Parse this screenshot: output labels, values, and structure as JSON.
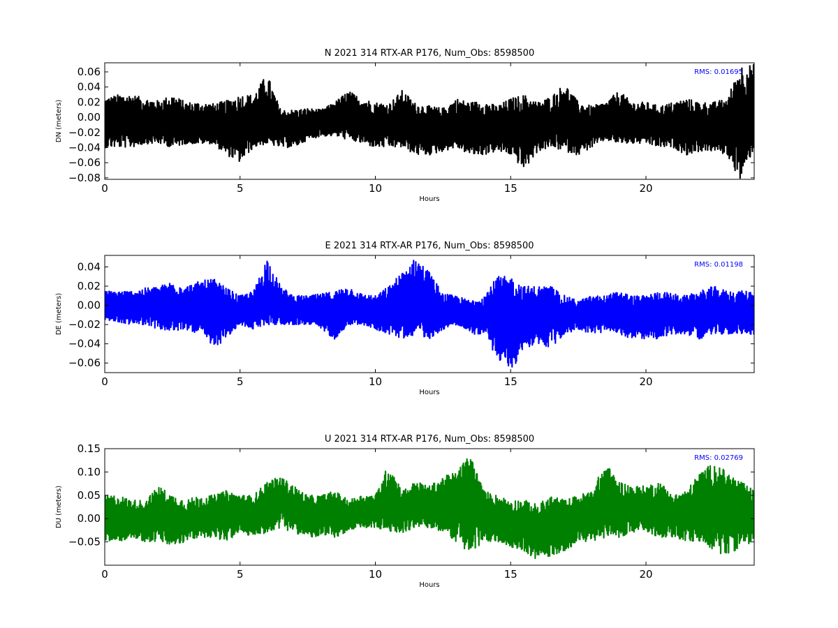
{
  "chart_data": [
    {
      "type": "line",
      "title": "N 2021 314 RTX-AR  P176, Num_Obs: 8598500",
      "xlabel": "Hours",
      "ylabel": "DN (meters)",
      "xlim": [
        0,
        24
      ],
      "ylim": [
        -0.082,
        0.072
      ],
      "xticks": [
        0,
        5,
        10,
        15,
        20
      ],
      "yticks": [
        -0.08,
        -0.06,
        -0.04,
        -0.02,
        0.0,
        0.02,
        0.04,
        0.06
      ],
      "ytick_labels": [
        "−0.08",
        "−0.06",
        "−0.04",
        "−0.02",
        "0.00",
        "0.02",
        "0.04",
        "0.06"
      ],
      "annotation": "RMS:  0.01695",
      "annotation_color": "#0000ff",
      "series": [
        {
          "color": "#000000",
          "hour_step": 0.5,
          "envelope_upper": [
            0.025,
            0.03,
            0.03,
            0.025,
            0.022,
            0.03,
            0.02,
            0.02,
            0.018,
            0.022,
            0.03,
            0.03,
            0.058,
            0.01,
            0.01,
            0.012,
            0.01,
            0.02,
            0.035,
            0.025,
            0.02,
            0.018,
            0.036,
            0.018,
            0.015,
            0.012,
            0.025,
            0.02,
            0.022,
            0.015,
            0.025,
            0.03,
            0.02,
            0.028,
            0.045,
            0.02,
            0.015,
            0.02,
            0.035,
            0.02,
            0.02,
            0.015,
            0.02,
            0.025,
            0.02,
            0.02,
            0.025,
            0.07,
            0.07
          ],
          "envelope_lower": [
            -0.04,
            -0.04,
            -0.04,
            -0.035,
            -0.035,
            -0.04,
            -0.035,
            -0.035,
            -0.035,
            -0.05,
            -0.06,
            -0.04,
            -0.035,
            -0.04,
            -0.04,
            -0.03,
            -0.025,
            -0.025,
            -0.03,
            -0.035,
            -0.04,
            -0.04,
            -0.04,
            -0.05,
            -0.05,
            -0.045,
            -0.04,
            -0.05,
            -0.05,
            -0.045,
            -0.05,
            -0.07,
            -0.045,
            -0.04,
            -0.045,
            -0.05,
            -0.04,
            -0.03,
            -0.035,
            -0.035,
            -0.035,
            -0.04,
            -0.04,
            -0.05,
            -0.045,
            -0.045,
            -0.05,
            -0.085,
            -0.04
          ],
          "center": [
            -0.005,
            -0.005,
            -0.005,
            -0.008,
            -0.008,
            -0.01,
            -0.012,
            -0.012,
            -0.012,
            -0.015,
            -0.015,
            -0.01,
            -0.01,
            -0.015,
            -0.015,
            -0.01,
            -0.005,
            0.0,
            0.0,
            -0.005,
            -0.01,
            -0.01,
            -0.01,
            -0.012,
            -0.015,
            -0.015,
            -0.01,
            -0.015,
            -0.015,
            -0.015,
            -0.012,
            -0.015,
            -0.015,
            -0.01,
            -0.005,
            -0.012,
            -0.015,
            -0.01,
            -0.005,
            -0.01,
            -0.01,
            -0.012,
            -0.012,
            -0.015,
            -0.012,
            -0.012,
            -0.012,
            -0.01,
            -0.01
          ]
        }
      ]
    },
    {
      "type": "line",
      "title": "E 2021 314 RTX-AR  P176, Num_Obs: 8598500",
      "xlabel": "Hours",
      "ylabel": "DE (meters)",
      "xlim": [
        0,
        24
      ],
      "ylim": [
        -0.07,
        0.052
      ],
      "xticks": [
        0,
        5,
        10,
        15,
        20
      ],
      "yticks": [
        -0.06,
        -0.04,
        -0.02,
        0.0,
        0.02,
        0.04
      ],
      "ytick_labels": [
        "−0.06",
        "−0.04",
        "−0.02",
        "0.00",
        "0.02",
        "0.04"
      ],
      "annotation": "RMS:  0.01198",
      "annotation_color": "#0000ff",
      "series": [
        {
          "color": "#0000ff",
          "hour_step": 0.5,
          "envelope_upper": [
            0.015,
            0.015,
            0.015,
            0.018,
            0.02,
            0.025,
            0.02,
            0.025,
            0.028,
            0.018,
            0.01,
            0.015,
            0.05,
            0.02,
            0.01,
            0.01,
            0.012,
            0.015,
            0.02,
            0.012,
            0.01,
            0.02,
            0.035,
            0.05,
            0.035,
            0.012,
            0.01,
            0.005,
            0.01,
            0.03,
            0.03,
            0.02,
            0.02,
            0.02,
            0.01,
            0.005,
            0.01,
            0.01,
            0.015,
            0.01,
            0.01,
            0.015,
            0.012,
            0.01,
            0.015,
            0.02,
            0.015,
            0.015,
            0.015
          ],
          "envelope_lower": [
            -0.015,
            -0.018,
            -0.02,
            -0.02,
            -0.025,
            -0.028,
            -0.025,
            -0.03,
            -0.045,
            -0.035,
            -0.02,
            -0.025,
            -0.02,
            -0.02,
            -0.02,
            -0.02,
            -0.025,
            -0.035,
            -0.02,
            -0.02,
            -0.025,
            -0.03,
            -0.035,
            -0.03,
            -0.035,
            -0.025,
            -0.02,
            -0.03,
            -0.03,
            -0.055,
            -0.07,
            -0.045,
            -0.04,
            -0.045,
            -0.03,
            -0.025,
            -0.03,
            -0.028,
            -0.03,
            -0.035,
            -0.035,
            -0.035,
            -0.03,
            -0.03,
            -0.035,
            -0.03,
            -0.03,
            -0.03,
            -0.03
          ],
          "center": [
            0.0,
            -0.002,
            -0.002,
            -0.002,
            -0.003,
            -0.002,
            -0.002,
            -0.002,
            -0.005,
            -0.005,
            -0.008,
            -0.005,
            0.005,
            -0.005,
            -0.005,
            -0.005,
            -0.005,
            -0.008,
            -0.003,
            -0.005,
            -0.008,
            -0.005,
            0.0,
            0.005,
            0.0,
            -0.008,
            -0.005,
            -0.01,
            -0.01,
            -0.012,
            -0.015,
            -0.01,
            -0.008,
            -0.01,
            -0.01,
            -0.01,
            -0.01,
            -0.008,
            -0.008,
            -0.01,
            -0.01,
            -0.01,
            -0.008,
            -0.008,
            -0.01,
            -0.008,
            -0.008,
            -0.008,
            -0.008
          ]
        }
      ]
    },
    {
      "type": "line",
      "title": "U 2021 314 RTX-AR  P176, Num_Obs: 8598500",
      "xlabel": "Hours",
      "ylabel": "DU (meters)",
      "xlim": [
        0,
        24
      ],
      "ylim": [
        -0.1,
        0.15
      ],
      "xticks": [
        0,
        5,
        10,
        15,
        20
      ],
      "yticks": [
        -0.05,
        0.0,
        0.05,
        0.1,
        0.15
      ],
      "ytick_labels": [
        "−0.05",
        "0.00",
        "0.05",
        "0.10",
        "0.15"
      ],
      "annotation": "RMS:  0.02769",
      "annotation_color": "#0000ff",
      "series": [
        {
          "color": "#008000",
          "hour_step": 0.5,
          "envelope_upper": [
            0.05,
            0.05,
            0.04,
            0.04,
            0.07,
            0.05,
            0.04,
            0.05,
            0.05,
            0.06,
            0.05,
            0.05,
            0.08,
            0.09,
            0.07,
            0.05,
            0.05,
            0.06,
            0.04,
            0.05,
            0.05,
            0.12,
            0.06,
            0.08,
            0.07,
            0.09,
            0.1,
            0.14,
            0.06,
            0.05,
            0.04,
            0.04,
            0.03,
            0.05,
            0.04,
            0.05,
            0.06,
            0.12,
            0.08,
            0.07,
            0.07,
            0.08,
            0.05,
            0.06,
            0.1,
            0.12,
            0.1,
            0.08,
            0.06
          ],
          "envelope_lower": [
            -0.05,
            -0.05,
            -0.04,
            -0.05,
            -0.05,
            -0.06,
            -0.05,
            -0.04,
            -0.04,
            -0.05,
            -0.03,
            -0.04,
            -0.03,
            -0.02,
            -0.03,
            -0.04,
            -0.04,
            -0.04,
            -0.03,
            -0.02,
            -0.02,
            -0.03,
            -0.03,
            -0.02,
            -0.02,
            -0.03,
            -0.05,
            -0.08,
            -0.05,
            -0.05,
            -0.06,
            -0.07,
            -0.09,
            -0.08,
            -0.07,
            -0.05,
            -0.05,
            -0.04,
            -0.04,
            -0.03,
            -0.03,
            -0.04,
            -0.04,
            -0.05,
            -0.05,
            -0.07,
            -0.08,
            -0.06,
            -0.05
          ],
          "center": [
            0.0,
            0.0,
            -0.005,
            -0.005,
            0.01,
            0.0,
            -0.005,
            -0.005,
            0.0,
            0.01,
            0.02,
            0.01,
            0.03,
            0.04,
            0.02,
            0.0,
            0.005,
            0.01,
            0.005,
            0.02,
            0.02,
            0.03,
            0.02,
            0.03,
            0.03,
            0.03,
            0.04,
            0.05,
            0.01,
            0.0,
            -0.01,
            -0.01,
            -0.03,
            -0.02,
            -0.01,
            0.0,
            0.01,
            0.03,
            0.02,
            0.02,
            0.02,
            0.02,
            0.01,
            0.01,
            0.03,
            0.03,
            0.02,
            0.01,
            0.01
          ]
        }
      ]
    }
  ]
}
